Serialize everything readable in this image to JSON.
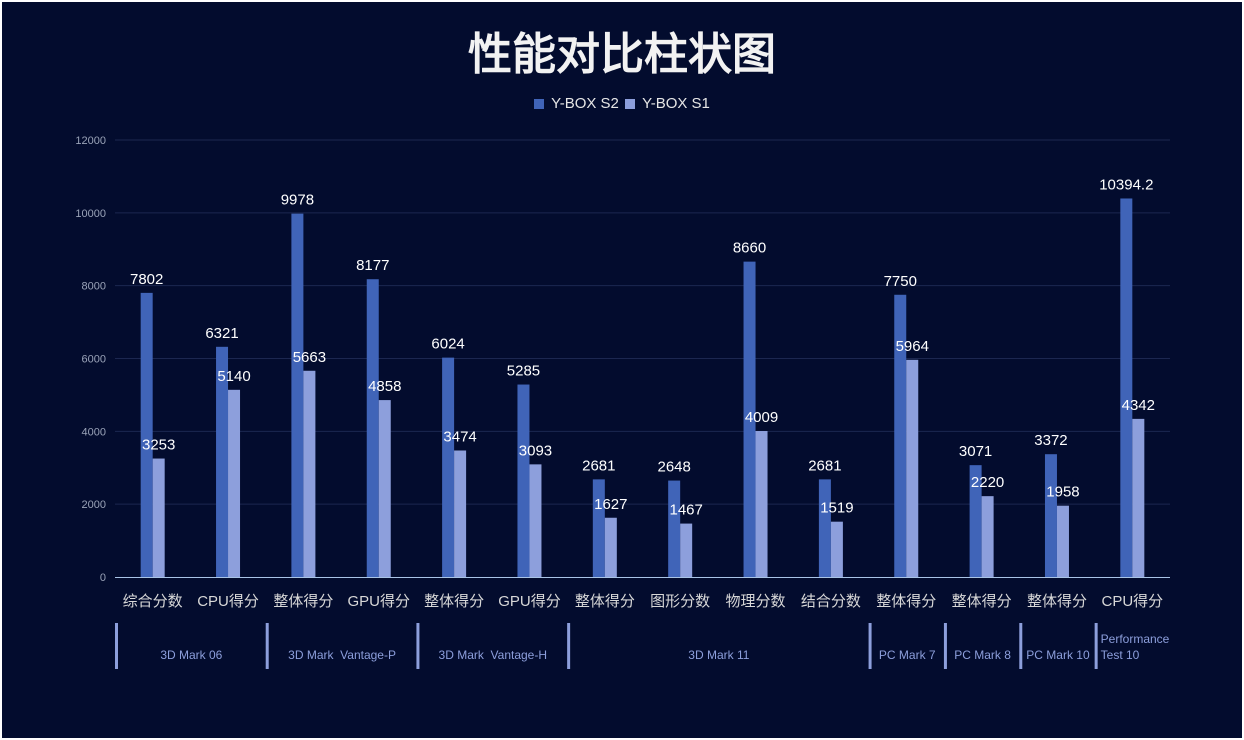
{
  "chart_data": {
    "type": "bar",
    "title": "性能对比柱状图",
    "categories": [
      "综合分数",
      "CPU得分",
      "整体得分",
      "GPU得分",
      "整体得分",
      "GPU得分",
      "整体得分",
      "图形分数",
      "物理分数",
      "结合分数",
      "整体得分",
      "整体得分",
      "整体得分",
      "CPU得分"
    ],
    "groups": [
      {
        "label": "3D Mark 06",
        "span": 2
      },
      {
        "label": "3D Mark  Vantage-P",
        "span": 2
      },
      {
        "label": "3D Mark  Vantage-H",
        "span": 2
      },
      {
        "label": "3D Mark 11",
        "span": 4
      },
      {
        "label": "PC Mark 7",
        "span": 1
      },
      {
        "label": "PC Mark 8",
        "span": 1
      },
      {
        "label": "PC Mark 10",
        "span": 1
      },
      {
        "label": "Performance Test 10",
        "span": 1
      }
    ],
    "series": [
      {
        "name": "Y-BOX S2",
        "color": "#4064b8",
        "values": [
          7802,
          6321,
          9978,
          8177,
          6024,
          5285,
          2681,
          2648,
          8660,
          2681,
          7750,
          3071,
          3372,
          10394.2
        ]
      },
      {
        "name": "Y-BOX S1",
        "color": "#8d9fdc",
        "values": [
          3253,
          5140,
          5663,
          4858,
          3474,
          3093,
          1627,
          1467,
          4009,
          1519,
          5964,
          2220,
          1958,
          4342
        ]
      }
    ],
    "ylim": [
      0,
      12000
    ],
    "yticks": [
      0,
      2000,
      4000,
      6000,
      8000,
      10000,
      12000
    ],
    "grid": true,
    "legend": "top-center",
    "xlabel": "",
    "ylabel": ""
  }
}
